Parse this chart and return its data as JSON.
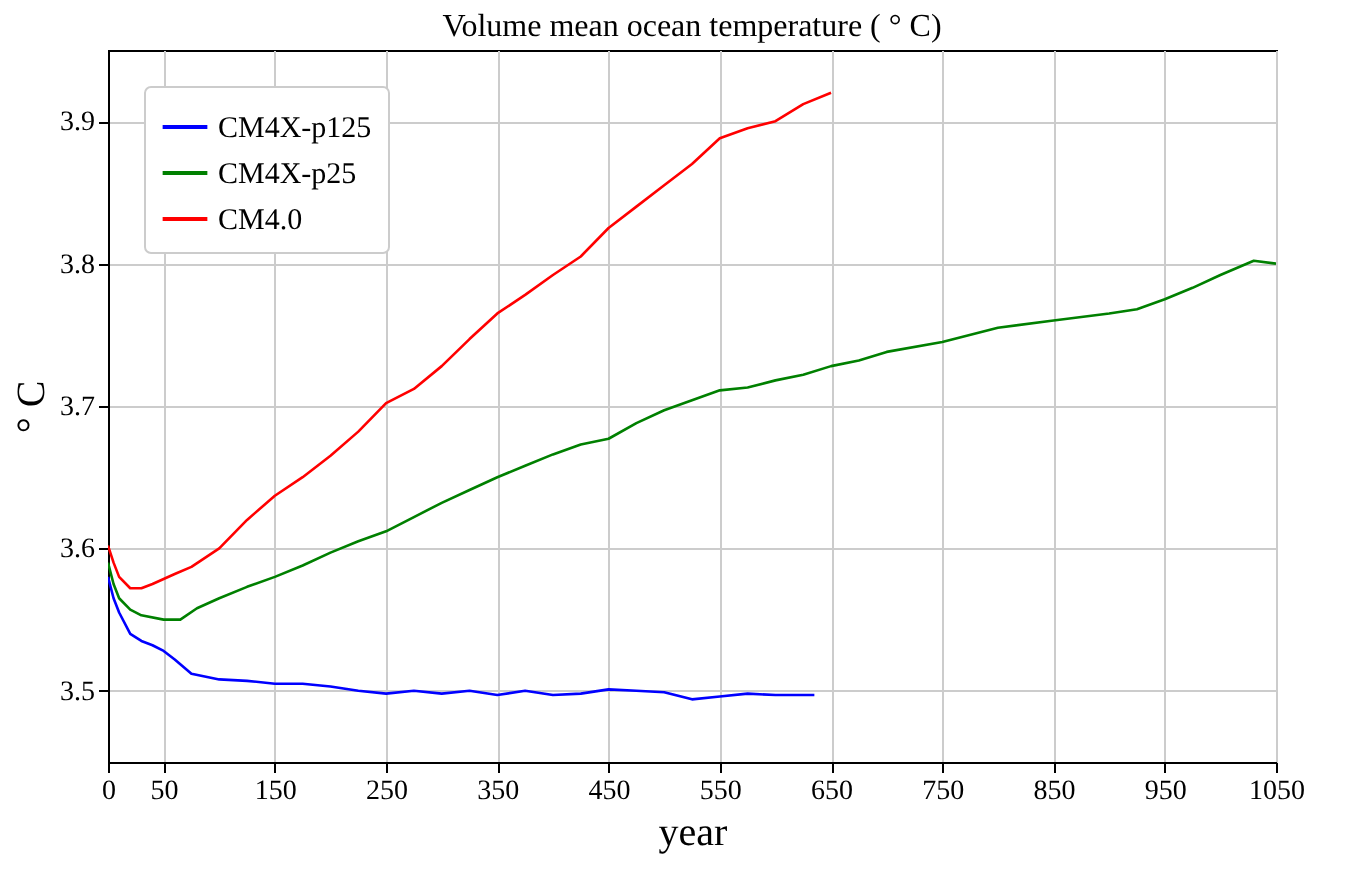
{
  "chart_data": {
    "type": "line",
    "title": "Volume mean ocean temperature ( ° C)",
    "xlabel": "year",
    "ylabel": "° C",
    "xlim": [
      0,
      1050
    ],
    "xticks": [
      0,
      50,
      150,
      250,
      350,
      450,
      550,
      650,
      750,
      850,
      950,
      1050
    ],
    "ylim": [
      3.45,
      3.95
    ],
    "yticks": [
      3.5,
      3.6,
      3.7,
      3.8,
      3.9
    ],
    "grid": true,
    "legend": "top left",
    "marker": "none",
    "line_style": "solid",
    "series": [
      {
        "name": "CM4X-p125",
        "color": "#0000ff",
        "x": [
          0,
          5,
          10,
          20,
          30,
          40,
          50,
          60,
          75,
          100,
          125,
          150,
          175,
          200,
          225,
          250,
          275,
          300,
          325,
          350,
          375,
          400,
          425,
          450,
          475,
          500,
          525,
          550,
          575,
          600,
          635
        ],
        "values": [
          3.58,
          3.565,
          3.555,
          3.54,
          3.535,
          3.532,
          3.528,
          3.522,
          3.512,
          3.508,
          3.507,
          3.505,
          3.505,
          3.503,
          3.5,
          3.498,
          3.5,
          3.498,
          3.5,
          3.497,
          3.5,
          3.497,
          3.498,
          3.501,
          3.5,
          3.499,
          3.494,
          3.496,
          3.498,
          3.497,
          3.497
        ]
      },
      {
        "name": "CM4X-p25",
        "color": "#008000",
        "x": [
          0,
          5,
          10,
          20,
          30,
          50,
          65,
          80,
          100,
          125,
          150,
          175,
          200,
          225,
          250,
          275,
          300,
          325,
          350,
          375,
          400,
          425,
          450,
          475,
          500,
          525,
          550,
          575,
          600,
          625,
          650,
          675,
          700,
          750,
          800,
          850,
          900,
          925,
          950,
          975,
          1000,
          1030,
          1050
        ],
        "values": [
          3.59,
          3.575,
          3.565,
          3.557,
          3.553,
          3.55,
          3.55,
          3.558,
          3.565,
          3.573,
          3.58,
          3.588,
          3.597,
          3.605,
          3.612,
          3.622,
          3.632,
          3.641,
          3.65,
          3.658,
          3.666,
          3.673,
          3.677,
          3.688,
          3.697,
          3.704,
          3.711,
          3.713,
          3.718,
          3.722,
          3.728,
          3.732,
          3.738,
          3.745,
          3.755,
          3.76,
          3.765,
          3.768,
          3.775,
          3.783,
          3.792,
          3.802,
          3.8
        ]
      },
      {
        "name": "CM4.0",
        "color": "#ff0000",
        "x": [
          0,
          5,
          10,
          20,
          30,
          40,
          60,
          75,
          100,
          125,
          150,
          175,
          200,
          225,
          250,
          275,
          300,
          325,
          350,
          375,
          400,
          425,
          450,
          475,
          500,
          525,
          550,
          575,
          600,
          625,
          650
        ],
        "values": [
          3.602,
          3.59,
          3.58,
          3.572,
          3.572,
          3.575,
          3.582,
          3.587,
          3.6,
          3.62,
          3.637,
          3.65,
          3.665,
          3.682,
          3.702,
          3.712,
          3.728,
          3.747,
          3.765,
          3.778,
          3.792,
          3.805,
          3.825,
          3.84,
          3.855,
          3.87,
          3.888,
          3.895,
          3.9,
          3.912,
          3.92
        ]
      }
    ]
  }
}
